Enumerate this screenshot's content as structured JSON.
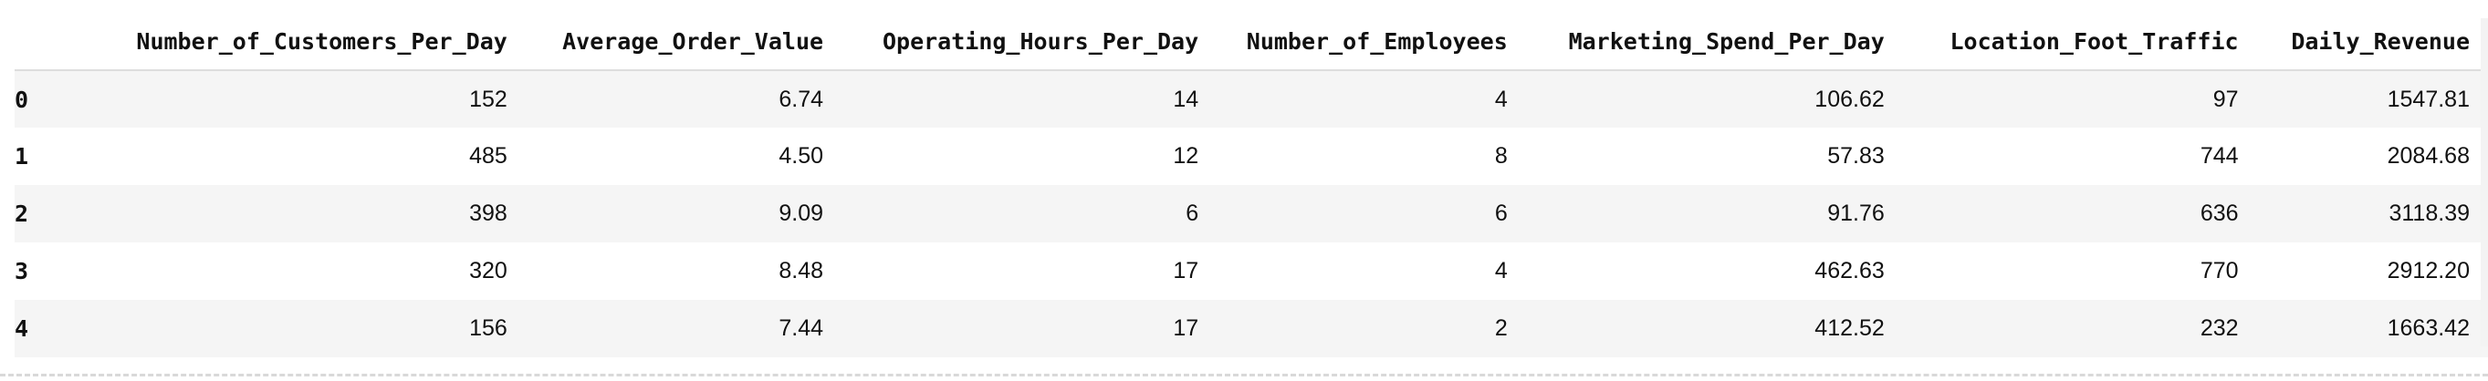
{
  "table": {
    "columns": [
      "Number_of_Customers_Per_Day",
      "Average_Order_Value",
      "Operating_Hours_Per_Day",
      "Number_of_Employees",
      "Marketing_Spend_Per_Day",
      "Location_Foot_Traffic",
      "Daily_Revenue"
    ],
    "rows": [
      {
        "index": "0",
        "cells": [
          "152",
          "6.74",
          "14",
          "4",
          "106.62",
          "97",
          "1547.81"
        ]
      },
      {
        "index": "1",
        "cells": [
          "485",
          "4.50",
          "12",
          "8",
          "57.83",
          "744",
          "2084.68"
        ]
      },
      {
        "index": "2",
        "cells": [
          "398",
          "9.09",
          "6",
          "6",
          "91.76",
          "636",
          "3118.39"
        ]
      },
      {
        "index": "3",
        "cells": [
          "320",
          "8.48",
          "17",
          "4",
          "462.63",
          "770",
          "2912.20"
        ]
      },
      {
        "index": "4",
        "cells": [
          "156",
          "7.44",
          "17",
          "2",
          "412.52",
          "232",
          "1663.42"
        ]
      }
    ]
  }
}
